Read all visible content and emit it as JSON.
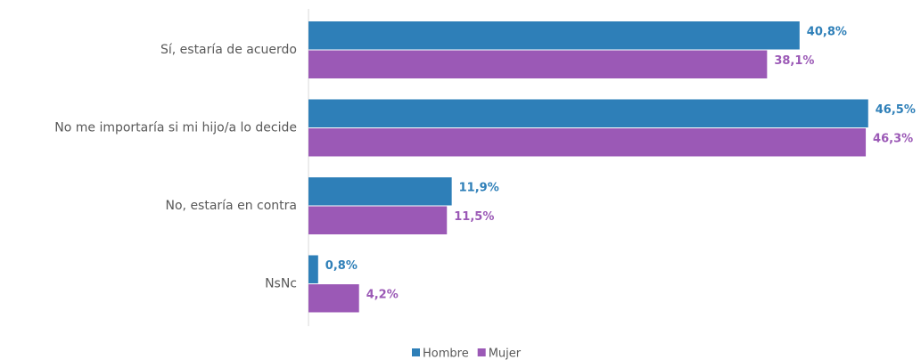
{
  "chart_data": {
    "type": "barh",
    "categories": [
      "Sí, estaría de acuerdo",
      "No me importaría si mi hijo/a lo decide",
      "No, estaría en contra",
      "NsNc"
    ],
    "series": [
      {
        "name": "Hombre",
        "color": "#2e7fb8",
        "values": [
          40.8,
          46.5,
          11.9,
          0.8
        ],
        "value_labels": [
          "40,8%",
          "46,5%",
          "11,9%",
          "0,8%"
        ]
      },
      {
        "name": "Mujer",
        "color": "#9b59b6",
        "values": [
          38.1,
          46.3,
          11.5,
          4.2
        ],
        "value_labels": [
          "38,1%",
          "46,3%",
          "11,5%",
          "4,2%"
        ]
      }
    ]
  }
}
